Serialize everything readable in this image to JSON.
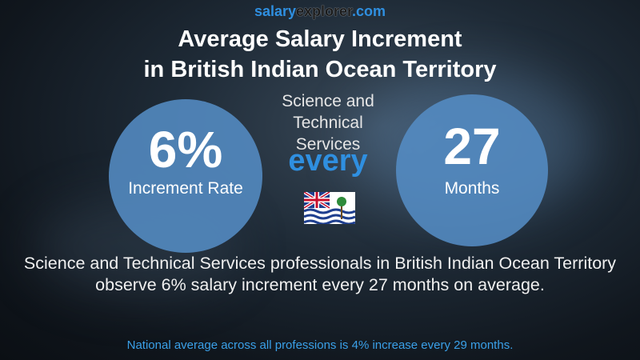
{
  "header": {
    "brand": {
      "part1": "salary",
      "part2": "explorer",
      "part3": ".com"
    },
    "title_line1": "Average Salary Increment",
    "title_line2": "in British Indian Ocean Territory",
    "subtitle": "Science and Technical Services"
  },
  "left_circle": {
    "value": "6%",
    "label": "Increment Rate"
  },
  "connector": "every",
  "right_circle": {
    "value": "27",
    "label": "Months"
  },
  "description": "Science and Technical Services professionals in British Indian Ocean Territory observe 6% salary increment every 27 months on average.",
  "footnote": "National average across all professions is 4% increase every 29 months."
}
